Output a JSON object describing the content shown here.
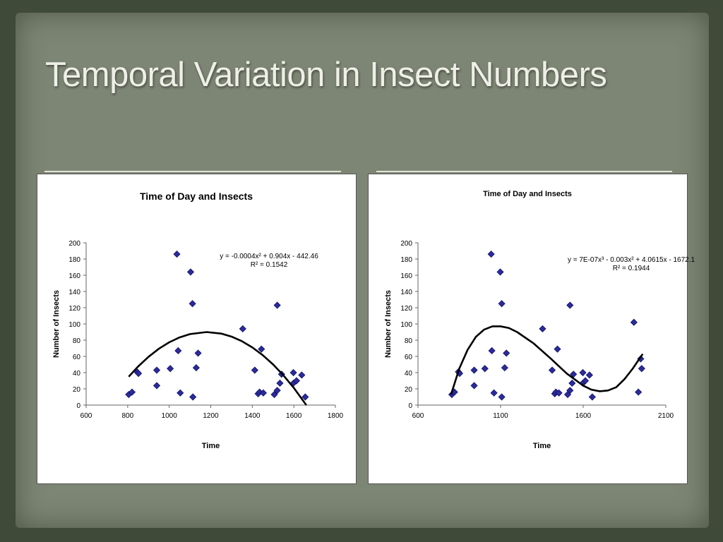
{
  "slide": {
    "title": "Temporal Variation in Insect Numbers"
  },
  "chart_data": [
    {
      "type": "scatter",
      "title": "Time of Day and Insects",
      "xlabel": "Time",
      "ylabel": "Number of Insects",
      "xlim": [
        600,
        1800
      ],
      "ylim": [
        0,
        200
      ],
      "xticks": [
        600,
        800,
        1000,
        1200,
        1400,
        1600,
        1800
      ],
      "yticks": [
        0,
        20,
        40,
        60,
        80,
        100,
        120,
        140,
        160,
        180,
        200
      ],
      "grid": false,
      "marker_color": "#2b2b9a",
      "trendline_equation": "y = -0.0004x² + 0.904x - 442.46",
      "trendline_r2": "R² = 0.1542",
      "points": [
        [
          805,
          13
        ],
        [
          821,
          16
        ],
        [
          845,
          41
        ],
        [
          852,
          39
        ],
        [
          940,
          43
        ],
        [
          940,
          24
        ],
        [
          1005,
          45
        ],
        [
          1037,
          186
        ],
        [
          1043,
          67
        ],
        [
          1053,
          15
        ],
        [
          1103,
          164
        ],
        [
          1114,
          10
        ],
        [
          1112,
          125
        ],
        [
          1130,
          46
        ],
        [
          1139,
          64
        ],
        [
          1354,
          94
        ],
        [
          1412,
          43
        ],
        [
          1428,
          14
        ],
        [
          1435,
          16
        ],
        [
          1444,
          69
        ],
        [
          1453,
          15
        ],
        [
          1506,
          13
        ],
        [
          1520,
          18
        ],
        [
          1520,
          123
        ],
        [
          1533,
          27
        ],
        [
          1541,
          38
        ],
        [
          1598,
          40
        ],
        [
          1598,
          27
        ],
        [
          1613,
          30
        ],
        [
          1638,
          37
        ],
        [
          1655,
          10
        ]
      ],
      "trendline": [
        [
          805,
          35
        ],
        [
          850,
          47.5
        ],
        [
          900,
          59.4
        ],
        [
          950,
          69.4
        ],
        [
          1000,
          77.4
        ],
        [
          1050,
          83.4
        ],
        [
          1100,
          87.5
        ],
        [
          1180,
          90
        ],
        [
          1250,
          88.1
        ],
        [
          1300,
          84.4
        ],
        [
          1350,
          78.7
        ],
        [
          1400,
          71.1
        ],
        [
          1450,
          61.6
        ],
        [
          1500,
          50.1
        ],
        [
          1550,
          36.6
        ],
        [
          1600,
          21.2
        ],
        [
          1660,
          0
        ]
      ]
    },
    {
      "type": "scatter",
      "title": "Time of Day and Insects",
      "xlabel": "Time",
      "ylabel": "Number of Insects",
      "xlim": [
        600,
        2100
      ],
      "ylim": [
        0,
        200
      ],
      "xticks": [
        600,
        1100,
        1600,
        2100
      ],
      "yticks": [
        0,
        20,
        40,
        60,
        80,
        100,
        120,
        140,
        160,
        180,
        200
      ],
      "grid": false,
      "marker_color": "#2b2b9a",
      "trendline_equation": "y = 7E-07x³ - 0.003x² + 4.0615x - 1672.1",
      "trendline_r2": "R² = 0.1944",
      "points": [
        [
          805,
          13
        ],
        [
          821,
          16
        ],
        [
          845,
          41
        ],
        [
          852,
          39
        ],
        [
          940,
          43
        ],
        [
          940,
          24
        ],
        [
          1005,
          45
        ],
        [
          1043,
          186
        ],
        [
          1047,
          67
        ],
        [
          1060,
          15
        ],
        [
          1098,
          164
        ],
        [
          1107,
          10
        ],
        [
          1107,
          125
        ],
        [
          1125,
          46
        ],
        [
          1135,
          64
        ],
        [
          1354,
          94
        ],
        [
          1412,
          43
        ],
        [
          1428,
          14
        ],
        [
          1435,
          16
        ],
        [
          1444,
          69
        ],
        [
          1453,
          15
        ],
        [
          1506,
          13
        ],
        [
          1520,
          18
        ],
        [
          1520,
          123
        ],
        [
          1533,
          27
        ],
        [
          1541,
          38
        ],
        [
          1598,
          40
        ],
        [
          1598,
          27
        ],
        [
          1613,
          30
        ],
        [
          1638,
          37
        ],
        [
          1655,
          10
        ],
        [
          1907,
          102
        ],
        [
          1934,
          16
        ],
        [
          1948,
          57
        ],
        [
          1954,
          45
        ]
      ],
      "trendline": [
        [
          800,
          13
        ],
        [
          850,
          45
        ],
        [
          900,
          68
        ],
        [
          950,
          84
        ],
        [
          1000,
          93
        ],
        [
          1050,
          97
        ],
        [
          1100,
          97
        ],
        [
          1150,
          95
        ],
        [
          1200,
          90
        ],
        [
          1300,
          76
        ],
        [
          1400,
          58
        ],
        [
          1500,
          39
        ],
        [
          1600,
          24
        ],
        [
          1650,
          19
        ],
        [
          1700,
          17
        ],
        [
          1750,
          18
        ],
        [
          1800,
          22
        ],
        [
          1850,
          32
        ],
        [
          1900,
          45
        ],
        [
          1960,
          63
        ]
      ]
    }
  ]
}
